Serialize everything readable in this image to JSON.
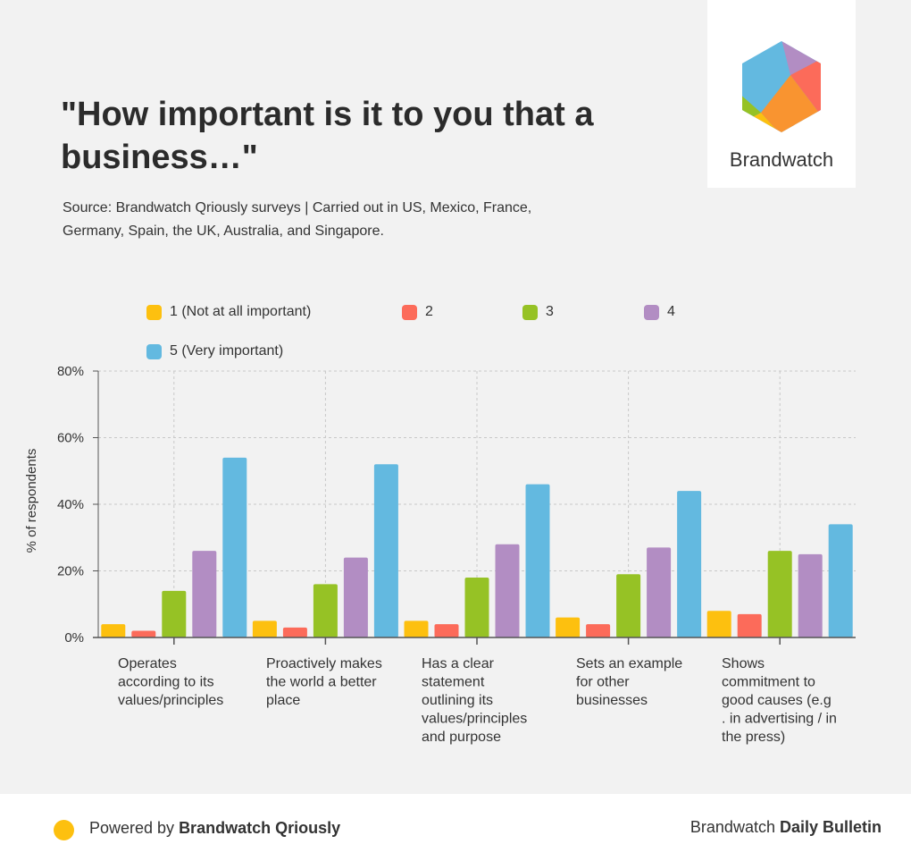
{
  "header": {
    "title": "\"How important is it to you that a business…\"",
    "subtitle": "Source: Brandwatch Qriously surveys | Carried out in US, Mexico, France, Germany, Spain, the UK, Australia, and Singapore."
  },
  "logo": {
    "wordmark": "Brandwatch"
  },
  "footer": {
    "powered_prefix": "Powered by ",
    "powered_brand": "Brandwatch Qriously",
    "right_prefix": "Brandwatch ",
    "right_bold": "Daily Bulletin",
    "dot_color": "#fdc00f"
  },
  "colors": {
    "s1": "#fdc00f",
    "s2": "#fc6b5a",
    "s3": "#96c225",
    "s4": "#b28dc3",
    "s5": "#63b9e0"
  },
  "chart_data": {
    "type": "bar",
    "title": "\"How important is it to you that a business…\"",
    "xlabel": "",
    "ylabel": "% of respondents",
    "ylim": [
      0,
      80
    ],
    "yticks": [
      0,
      20,
      40,
      60,
      80
    ],
    "ytick_labels": [
      "0%",
      "20%",
      "40%",
      "60%",
      "80%"
    ],
    "grid": true,
    "legend_position": "top",
    "categories": [
      "Operates according to its values/principles",
      "Proactively makes the world a better place",
      "Has a clear statement outlining its values/principles and purpose",
      "Sets an example for other businesses",
      "Shows commitment to good causes (e.g . in advertising / in the press)"
    ],
    "category_lines": [
      [
        "Operates",
        "according to its",
        "values/principles"
      ],
      [
        "Proactively makes",
        "the world a better",
        "place"
      ],
      [
        "Has a clear",
        "statement",
        "outlining its",
        "values/principles",
        "and purpose"
      ],
      [
        "Sets an example",
        "for other",
        "businesses"
      ],
      [
        "Shows",
        "commitment to",
        "good causes (e.g",
        ". in advertising / in",
        "the press)"
      ]
    ],
    "series": [
      {
        "name": "1 (Not at all important)",
        "color": "#fdc00f",
        "values": [
          4,
          5,
          5,
          6,
          8
        ]
      },
      {
        "name": "2",
        "color": "#fc6b5a",
        "values": [
          2,
          3,
          4,
          4,
          7
        ]
      },
      {
        "name": "3",
        "color": "#96c225",
        "values": [
          14,
          16,
          18,
          19,
          26
        ]
      },
      {
        "name": "4",
        "color": "#b28dc3",
        "values": [
          26,
          24,
          28,
          27,
          25
        ]
      },
      {
        "name": "5 (Very important)",
        "color": "#63b9e0",
        "values": [
          54,
          52,
          46,
          44,
          34
        ]
      }
    ]
  }
}
